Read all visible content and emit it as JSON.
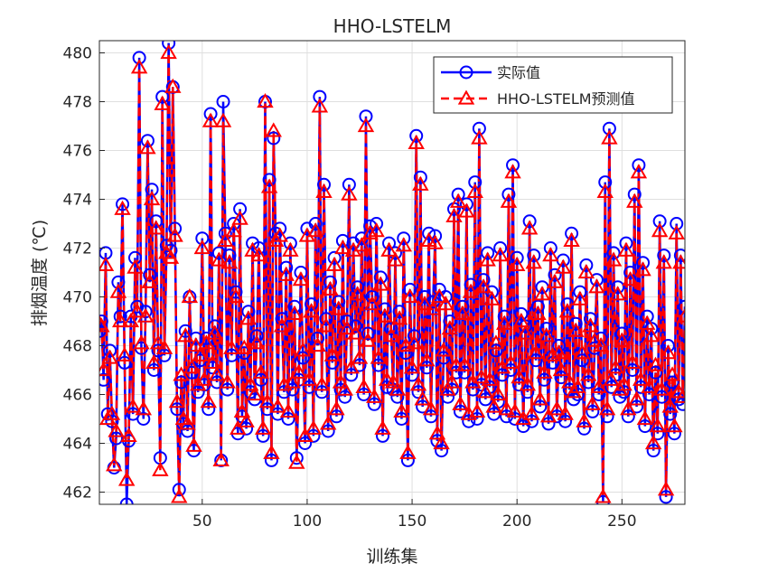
{
  "chart_data": {
    "type": "line",
    "title": "HHO-LSTELM",
    "xlabel": "训练集",
    "ylabel": "排烟温度 (℃)",
    "xlim": [
      1,
      280
    ],
    "ylim": [
      461.5,
      480.5
    ],
    "xticks": [
      50,
      100,
      150,
      200,
      250
    ],
    "yticks": [
      462,
      464,
      466,
      468,
      470,
      472,
      474,
      476,
      478,
      480
    ],
    "grid": true,
    "legend": "northeast",
    "x": [
      1,
      2,
      3,
      4,
      5,
      6,
      7,
      8,
      9,
      10,
      11,
      12,
      13,
      14,
      15,
      16,
      17,
      18,
      19,
      20,
      21,
      22,
      23,
      24,
      25,
      26,
      27,
      28,
      29,
      30,
      31,
      32,
      33,
      34,
      35,
      36,
      37,
      38,
      39,
      40,
      41,
      42,
      43,
      44,
      45,
      46,
      47,
      48,
      49,
      50,
      51,
      52,
      53,
      54,
      55,
      56,
      57,
      58,
      59,
      60,
      61,
      62,
      63,
      64,
      65,
      66,
      67,
      68,
      69,
      70,
      71,
      72,
      73,
      74,
      75,
      76,
      77,
      78,
      79,
      80,
      81,
      82,
      83,
      84,
      85,
      86,
      87,
      88,
      89,
      90,
      91,
      92,
      93,
      94,
      95,
      96,
      97,
      98,
      99,
      100,
      101,
      102,
      103,
      104,
      105,
      106,
      107,
      108,
      109,
      110,
      111,
      112,
      113,
      114,
      115,
      116,
      117,
      118,
      119,
      120,
      121,
      122,
      123,
      124,
      125,
      126,
      127,
      128,
      129,
      130,
      131,
      132,
      133,
      134,
      135,
      136,
      137,
      138,
      139,
      140,
      141,
      142,
      143,
      144,
      145,
      146,
      147,
      148,
      149,
      150,
      151,
      152,
      153,
      154,
      155,
      156,
      157,
      158,
      159,
      160,
      161,
      162,
      163,
      164,
      165,
      166,
      167,
      168,
      169,
      170,
      171,
      172,
      173,
      174,
      175,
      176,
      177,
      178,
      179,
      180,
      181,
      182,
      183,
      184,
      185,
      186,
      187,
      188,
      189,
      190,
      191,
      192,
      193,
      194,
      195,
      196,
      197,
      198,
      199,
      200,
      201,
      202,
      203,
      204,
      205,
      206,
      207,
      208,
      209,
      210,
      211,
      212,
      213,
      214,
      215,
      216,
      217,
      218,
      219,
      220,
      221,
      222,
      223,
      224,
      225,
      226,
      227,
      228,
      229,
      230,
      231,
      232,
      233,
      234,
      235,
      236,
      237,
      238,
      239,
      240,
      241,
      242,
      243,
      244,
      245,
      246,
      247,
      248,
      249,
      250,
      251,
      252,
      253,
      254,
      255,
      256,
      257,
      258,
      259,
      260,
      261,
      262,
      263,
      264,
      265,
      266,
      267,
      268,
      269,
      270,
      271,
      272,
      273,
      274,
      275,
      276,
      277,
      278,
      279,
      280
    ],
    "series": [
      {
        "name": "实际值",
        "color": "#0000ff",
        "marker": "circle",
        "linestyle": "solid",
        "values": [
          468.6,
          469.0,
          466.6,
          471.8,
          465.2,
          467.8,
          464.9,
          463.0,
          464.2,
          470.6,
          469.2,
          473.8,
          467.3,
          461.5,
          464.1,
          469.2,
          465.2,
          471.6,
          469.6,
          479.8,
          467.9,
          465.0,
          469.4,
          476.4,
          470.9,
          474.4,
          467.0,
          473.1,
          467.8,
          463.4,
          478.2,
          467.6,
          472.1,
          480.4,
          471.9,
          478.6,
          472.8,
          465.4,
          462.1,
          466.5,
          464.8,
          468.6,
          464.5,
          470.0,
          466.9,
          463.7,
          468.3,
          466.1,
          467.4,
          472.4,
          466.4,
          468.3,
          465.4,
          477.5,
          467.1,
          468.8,
          466.5,
          471.8,
          463.3,
          478.0,
          472.6,
          466.2,
          471.7,
          467.6,
          473.0,
          470.2,
          464.4,
          473.6,
          465.1,
          467.7,
          464.6,
          469.4,
          466.1,
          472.2,
          465.8,
          468.4,
          472.0,
          466.6,
          464.3,
          478.0,
          465.4,
          474.8,
          463.3,
          476.5,
          472.6,
          465.2,
          472.8,
          469.1,
          466.1,
          471.2,
          465.0,
          472.2,
          466.2,
          469.6,
          463.4,
          466.6,
          471.0,
          467.5,
          464.0,
          472.8,
          466.3,
          469.7,
          464.3,
          473.0,
          468.3,
          478.2,
          466.1,
          474.6,
          469.1,
          464.5,
          470.6,
          467.3,
          471.6,
          465.1,
          469.8,
          466.2,
          472.3,
          465.9,
          469.0,
          474.6,
          466.8,
          472.2,
          468.8,
          470.4,
          467.2,
          472.4,
          466.0,
          477.4,
          468.5,
          472.9,
          470.0,
          465.6,
          473.0,
          467.2,
          470.8,
          464.3,
          469.5,
          466.3,
          472.2,
          468.7,
          466.2,
          471.8,
          465.9,
          469.4,
          465.0,
          472.4,
          467.7,
          463.3,
          470.3,
          466.8,
          468.4,
          476.6,
          466.1,
          474.9,
          465.5,
          470.0,
          467.1,
          472.6,
          465.1,
          469.8,
          472.5,
          464.1,
          470.3,
          463.7,
          467.5,
          470.0,
          465.9,
          469.0,
          466.2,
          473.6,
          466.9,
          474.2,
          465.3,
          469.6,
          466.9,
          473.8,
          464.9,
          470.5,
          466.2,
          474.7,
          465.0,
          476.9,
          466.4,
          470.7,
          465.8,
          471.8,
          466.3,
          470.2,
          465.2,
          467.8,
          465.7,
          472.0,
          466.8,
          469.2,
          465.1,
          474.2,
          467.0,
          475.4,
          465.0,
          471.6,
          466.4,
          469.3,
          464.7,
          468.8,
          466.1,
          473.1,
          464.9,
          471.7,
          467.4,
          469.6,
          465.5,
          470.4,
          466.6,
          468.7,
          464.8,
          472.0,
          467.3,
          470.9,
          465.1,
          468.0,
          466.7,
          471.5,
          464.9,
          469.7,
          466.2,
          472.6,
          465.8,
          468.9,
          466.0,
          470.2,
          467.4,
          464.6,
          471.3,
          466.5,
          469.1,
          465.3,
          467.9,
          470.7,
          466.0,
          468.3,
          461.6,
          474.7,
          465.1,
          476.9,
          466.3,
          471.8,
          466.8,
          470.4,
          465.9,
          468.5,
          466.1,
          472.2,
          465.1,
          471.0,
          467.0,
          474.2,
          465.5,
          475.4,
          466.3,
          471.4,
          464.7,
          469.2,
          466.0,
          468.7,
          463.7,
          466.9,
          464.4,
          473.1,
          465.9,
          471.7,
          461.8,
          468.0,
          465.2,
          466.5,
          464.4,
          473.0,
          465.8,
          471.7,
          465.6,
          469.6
        ]
      },
      {
        "name": "HHO-LSTELM预测值",
        "color": "#ff0000",
        "marker": "triangle",
        "linestyle": "dashed",
        "values": [
          468.9,
          468.8,
          467.0,
          471.3,
          465.0,
          467.5,
          465.2,
          463.1,
          464.5,
          470.2,
          469.0,
          473.6,
          467.6,
          462.5,
          464.3,
          469.0,
          465.5,
          471.2,
          469.4,
          479.4,
          468.1,
          465.4,
          469.2,
          476.1,
          470.6,
          474.0,
          467.3,
          472.8,
          468.1,
          462.9,
          477.9,
          467.9,
          471.8,
          480.0,
          471.6,
          478.6,
          472.5,
          465.7,
          461.8,
          466.8,
          465.0,
          468.4,
          464.8,
          470.0,
          467.1,
          463.9,
          468.0,
          466.4,
          467.6,
          472.0,
          466.6,
          468.1,
          465.7,
          477.2,
          467.3,
          468.5,
          466.8,
          471.5,
          463.3,
          477.2,
          472.3,
          466.5,
          471.4,
          467.9,
          472.7,
          470.0,
          464.6,
          473.2,
          465.3,
          467.9,
          464.9,
          469.1,
          466.4,
          471.9,
          466.0,
          468.1,
          471.7,
          466.9,
          464.6,
          478.0,
          465.7,
          474.5,
          463.6,
          476.8,
          472.3,
          465.5,
          472.5,
          468.8,
          466.4,
          470.9,
          465.3,
          471.9,
          466.5,
          469.3,
          463.2,
          466.9,
          470.7,
          467.8,
          464.3,
          472.5,
          466.6,
          469.4,
          464.6,
          472.7,
          468.0,
          477.8,
          466.4,
          474.3,
          468.8,
          464.8,
          470.3,
          467.6,
          471.3,
          465.4,
          469.5,
          466.5,
          472.0,
          466.2,
          468.7,
          474.2,
          467.1,
          471.9,
          468.5,
          470.1,
          467.5,
          472.1,
          466.3,
          477.0,
          468.2,
          472.6,
          469.7,
          465.9,
          472.7,
          467.5,
          470.5,
          464.6,
          469.2,
          466.6,
          471.9,
          468.4,
          466.5,
          471.5,
          466.2,
          469.1,
          465.3,
          472.1,
          468.0,
          463.6,
          470.0,
          467.1,
          468.1,
          476.3,
          466.4,
          474.6,
          465.8,
          469.7,
          467.4,
          472.3,
          465.4,
          469.5,
          472.2,
          464.4,
          470.0,
          464.0,
          467.8,
          469.7,
          466.2,
          468.7,
          466.5,
          473.3,
          467.2,
          473.9,
          465.6,
          469.3,
          467.2,
          473.5,
          465.2,
          470.2,
          466.5,
          474.3,
          465.3,
          476.5,
          466.7,
          470.4,
          466.1,
          471.5,
          466.6,
          469.9,
          465.5,
          468.1,
          466.0,
          471.7,
          467.1,
          468.9,
          465.4,
          473.9,
          467.3,
          475.1,
          465.3,
          471.3,
          466.7,
          469.0,
          465.0,
          468.5,
          466.4,
          472.8,
          465.2,
          471.4,
          467.7,
          469.3,
          465.8,
          470.1,
          466.9,
          468.4,
          465.1,
          471.7,
          467.6,
          470.6,
          465.4,
          467.7,
          467.0,
          471.2,
          465.2,
          469.4,
          466.5,
          472.3,
          466.1,
          468.6,
          466.3,
          469.9,
          467.7,
          464.9,
          471.0,
          466.8,
          468.8,
          465.6,
          468.2,
          470.4,
          466.3,
          468.0,
          461.8,
          474.3,
          465.4,
          476.5,
          466.6,
          471.5,
          467.1,
          470.1,
          466.2,
          468.2,
          466.4,
          471.9,
          465.4,
          470.7,
          467.3,
          473.9,
          465.8,
          475.1,
          466.6,
          471.1,
          465.0,
          468.9,
          466.3,
          468.4,
          464.0,
          467.2,
          464.7,
          472.7,
          466.2,
          471.4,
          462.1,
          467.7,
          465.5,
          466.8,
          464.7,
          472.6,
          466.1,
          471.4,
          465.9,
          469.2
        ]
      }
    ]
  }
}
